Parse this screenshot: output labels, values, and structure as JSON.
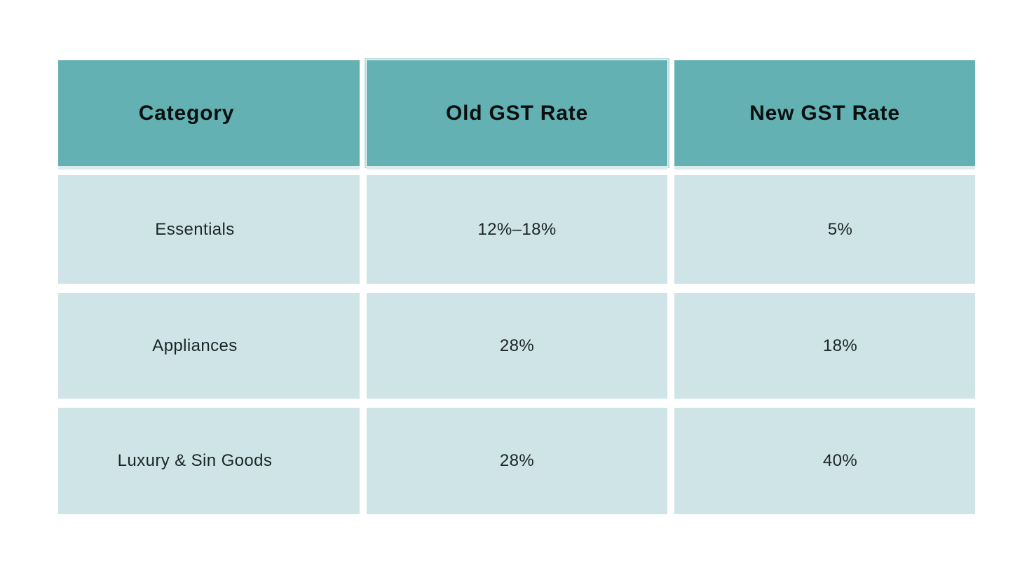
{
  "chart_data": {
    "type": "table",
    "title": "",
    "columns": [
      "Category",
      "Old GST Rate",
      "New GST Rate"
    ],
    "rows": [
      [
        "Essentials",
        "12%–18%",
        "5%"
      ],
      [
        "Appliances",
        "28%",
        "18%"
      ],
      [
        "Luxury & Sin Goods",
        "28%",
        "40%"
      ]
    ]
  },
  "colors": {
    "header_bg": "#63b1b3",
    "cell_bg": "#cfe4e6",
    "header_shadow": "#dcecee",
    "highlight_outline": "#bcdedd",
    "header_text": "#0b0f0f",
    "body_text": "#1c2526",
    "page_bg": "#ffffff"
  }
}
